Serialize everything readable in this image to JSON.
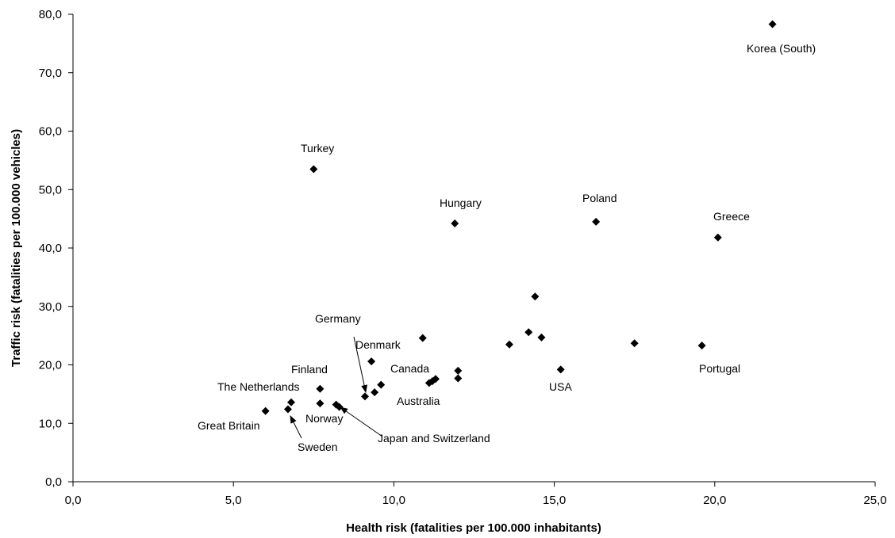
{
  "chart_data": {
    "type": "scatter",
    "xlabel": "Health risk (fatalities per 100.000 inhabitants)",
    "ylabel": "Traffic risk (fatalities per 100.000 vehicles)",
    "xlim": [
      0,
      25
    ],
    "ylim": [
      0,
      80
    ],
    "x_ticks": [
      "0,0",
      "5,0",
      "10,0",
      "15,0",
      "20,0",
      "25,0"
    ],
    "y_ticks": [
      "0,0",
      "10,0",
      "20,0",
      "30,0",
      "40,0",
      "50,0",
      "60,0",
      "70,0",
      "80,0"
    ],
    "grid": false,
    "marker": "diamond",
    "marker_color": "#000000",
    "points": [
      {
        "x": 21.8,
        "y": 78.3
      },
      {
        "x": 7.5,
        "y": 53.5
      },
      {
        "x": 11.9,
        "y": 44.2
      },
      {
        "x": 16.3,
        "y": 44.5
      },
      {
        "x": 20.1,
        "y": 41.8
      },
      {
        "x": 14.4,
        "y": 31.7
      },
      {
        "x": 14.2,
        "y": 25.6
      },
      {
        "x": 14.6,
        "y": 24.7
      },
      {
        "x": 10.9,
        "y": 24.6
      },
      {
        "x": 17.5,
        "y": 23.7
      },
      {
        "x": 13.6,
        "y": 23.5
      },
      {
        "x": 19.6,
        "y": 23.3
      },
      {
        "x": 9.3,
        "y": 20.6
      },
      {
        "x": 15.2,
        "y": 19.2
      },
      {
        "x": 12.0,
        "y": 19.0
      },
      {
        "x": 12.0,
        "y": 17.7
      },
      {
        "x": 11.3,
        "y": 17.6
      },
      {
        "x": 11.2,
        "y": 17.2
      },
      {
        "x": 11.1,
        "y": 16.9
      },
      {
        "x": 9.6,
        "y": 16.6
      },
      {
        "x": 7.7,
        "y": 15.9
      },
      {
        "x": 9.4,
        "y": 15.3
      },
      {
        "x": 9.1,
        "y": 14.6
      },
      {
        "x": 6.8,
        "y": 13.6
      },
      {
        "x": 7.7,
        "y": 13.4
      },
      {
        "x": 8.2,
        "y": 13.2
      },
      {
        "x": 8.3,
        "y": 12.8
      },
      {
        "x": 6.7,
        "y": 12.4
      },
      {
        "x": 6.0,
        "y": 12.1
      }
    ],
    "annotations": [
      {
        "text": "Korea (South)"
      },
      {
        "text": "Turkey"
      },
      {
        "text": "Hungary"
      },
      {
        "text": "Poland"
      },
      {
        "text": "Greece"
      },
      {
        "text": "Germany"
      },
      {
        "text": "Denmark"
      },
      {
        "text": "Canada"
      },
      {
        "text": "Finland"
      },
      {
        "text": "USA"
      },
      {
        "text": "Portugal"
      },
      {
        "text": "The Netherlands"
      },
      {
        "text": "Australia"
      },
      {
        "text": "Norway"
      },
      {
        "text": "Great Britain"
      },
      {
        "text": "Sweden"
      },
      {
        "text": "Japan and Switzerland"
      }
    ]
  }
}
